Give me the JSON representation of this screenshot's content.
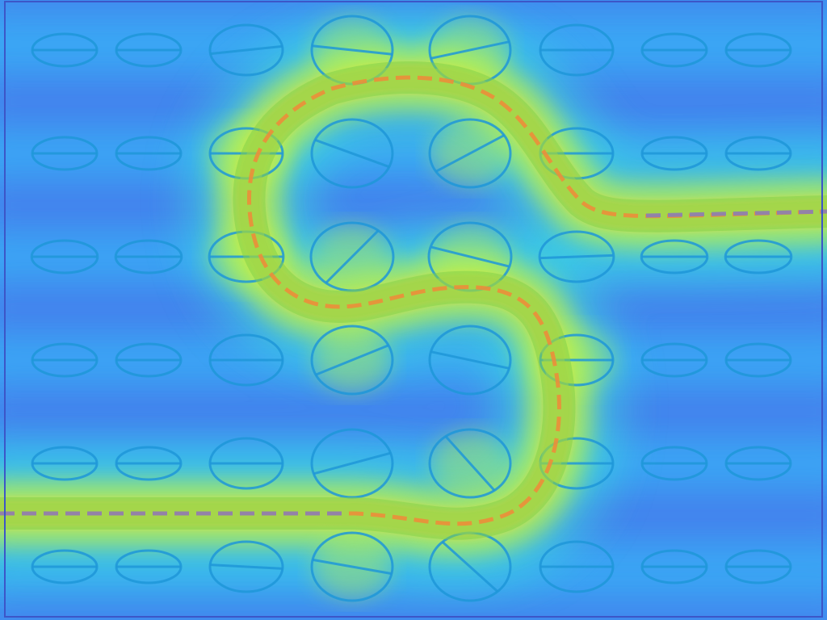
{
  "scene": {
    "rows": 6,
    "cols": 8,
    "colors": {
      "cold": "#4b63e6",
      "cool": "#3aa8f5",
      "mid": "#3ee6d8",
      "warm": "#c8f53c",
      "hot": "#ffd23c",
      "core": "#ff7a1e",
      "ellipse": "#1f97d8",
      "path_glow": "#7fd24a",
      "path_dash": "#f08a3a",
      "frame": "#3c56c8"
    },
    "cells": [
      [
        {
          "t": 0
        },
        {
          "t": 0
        },
        {
          "t": 6
        },
        {
          "t": -6
        },
        {
          "t": 12
        },
        {
          "t": 0
        },
        {
          "t": 0
        },
        {
          "t": 0
        }
      ],
      [
        {
          "t": 0
        },
        {
          "t": 0
        },
        {
          "t": 0
        },
        {
          "t": -20
        },
        {
          "t": 28
        },
        {
          "t": 0
        },
        {
          "t": 0
        },
        {
          "t": 0
        }
      ],
      [
        {
          "t": 0
        },
        {
          "t": 0
        },
        {
          "t": 0
        },
        {
          "t": 45
        },
        {
          "t": -14
        },
        {
          "t": 2
        },
        {
          "t": 0
        },
        {
          "t": 0
        }
      ],
      [
        {
          "t": 0
        },
        {
          "t": 0
        },
        {
          "t": 0
        },
        {
          "t": 22
        },
        {
          "t": -12
        },
        {
          "t": 0
        },
        {
          "t": 0
        },
        {
          "t": 0
        }
      ],
      [
        {
          "t": 0
        },
        {
          "t": 0
        },
        {
          "t": 0
        },
        {
          "t": 15
        },
        {
          "t": -48
        },
        {
          "t": 0
        },
        {
          "t": 0
        },
        {
          "t": 0
        }
      ],
      [
        {
          "t": 0
        },
        {
          "t": 0
        },
        {
          "t": -3
        },
        {
          "t": -10
        },
        {
          "t": -42
        },
        {
          "t": 0
        },
        {
          "t": 0
        },
        {
          "t": 0
        }
      ]
    ]
  }
}
